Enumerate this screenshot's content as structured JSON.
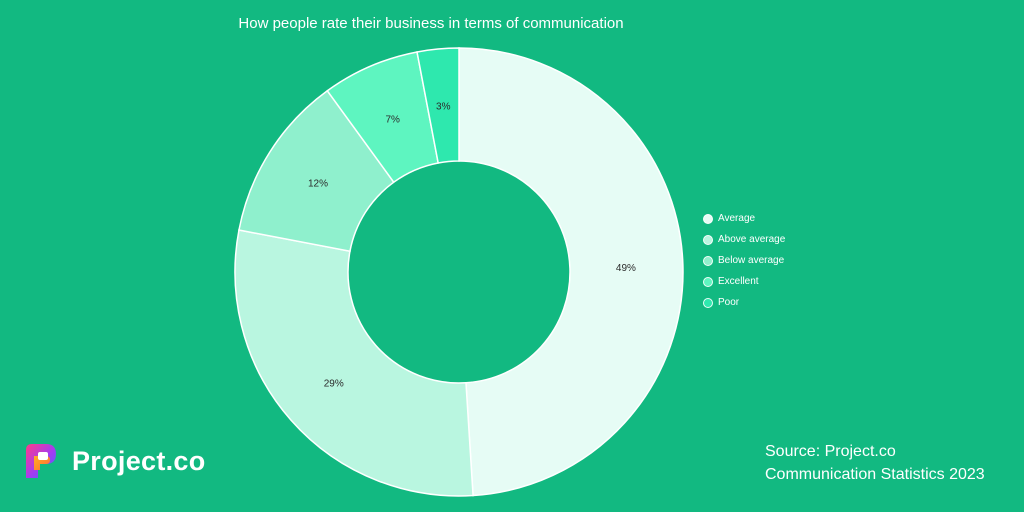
{
  "chart_data": {
    "type": "pie",
    "title": "How people rate their business in terms of communication",
    "categories": [
      "Average",
      "Above average",
      "Below average",
      "Excellent",
      "Poor"
    ],
    "values": [
      49,
      29,
      12,
      7,
      3
    ],
    "value_labels": [
      "49%",
      "29%",
      "12%",
      "7%",
      "3%"
    ],
    "colors": [
      "#e6fcf5",
      "#b9f6e0",
      "#8ff0cd",
      "#5ef5c0",
      "#2ee8ae"
    ],
    "legend_position": "right",
    "donut": true
  },
  "brand": {
    "logo_name": "Project.co"
  },
  "source": {
    "line1": "Source: Project.co",
    "line2": "Communication Statistics 2023"
  },
  "colors": {
    "background": "#12b981",
    "label_text": "#2b2b2b"
  }
}
